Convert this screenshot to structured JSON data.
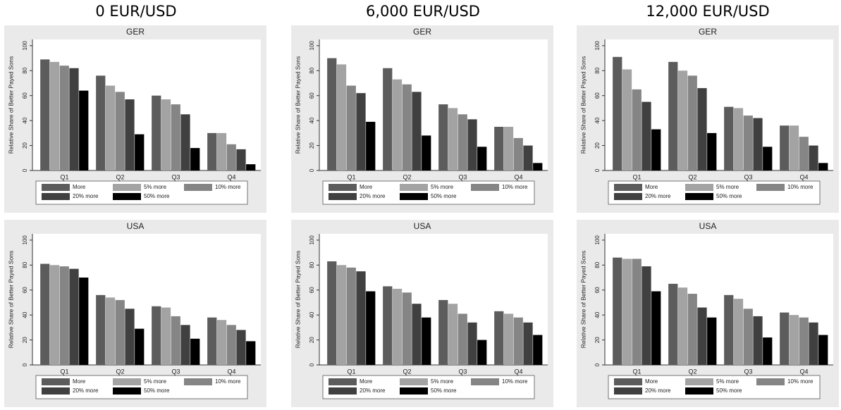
{
  "columns": [
    "0 EUR/USD",
    "6,000 EUR/USD",
    "12,000 EUR/USD"
  ],
  "chart_data": [
    {
      "type": "bar",
      "title": "GER",
      "y_label": "Relative Share of Better Payed Sons",
      "categories": [
        "Q1",
        "Q2",
        "Q3",
        "Q4"
      ],
      "ylim": [
        0,
        105
      ],
      "yticks": [
        0,
        20,
        40,
        60,
        80,
        100
      ],
      "legend": "bottom",
      "series": [
        {
          "name": "More",
          "color": "#5c5c5c",
          "values": [
            89,
            76,
            60,
            30
          ]
        },
        {
          "name": "5% more",
          "color": "#a3a3a3",
          "values": [
            87,
            68,
            57,
            30
          ]
        },
        {
          "name": "10% more",
          "color": "#858585",
          "values": [
            84,
            63,
            53,
            21
          ]
        },
        {
          "name": "20% more",
          "color": "#404040",
          "values": [
            82,
            57,
            45,
            17
          ]
        },
        {
          "name": "50% more",
          "color": "#000000",
          "values": [
            64,
            29,
            18,
            5
          ]
        }
      ]
    },
    {
      "type": "bar",
      "title": "GER",
      "y_label": "Relative Share of Better Payed Sons",
      "categories": [
        "Q1",
        "Q2",
        "Q3",
        "Q4"
      ],
      "ylim": [
        0,
        105
      ],
      "yticks": [
        0,
        20,
        40,
        60,
        80,
        100
      ],
      "legend": "bottom",
      "series": [
        {
          "name": "More",
          "color": "#5c5c5c",
          "values": [
            90,
            82,
            53,
            35
          ]
        },
        {
          "name": "5% more",
          "color": "#a3a3a3",
          "values": [
            85,
            73,
            50,
            35
          ]
        },
        {
          "name": "10% more",
          "color": "#858585",
          "values": [
            68,
            69,
            45,
            26
          ]
        },
        {
          "name": "20% more",
          "color": "#404040",
          "values": [
            62,
            63,
            41,
            20
          ]
        },
        {
          "name": "50% more",
          "color": "#000000",
          "values": [
            39,
            28,
            19,
            6
          ]
        }
      ]
    },
    {
      "type": "bar",
      "title": "GER",
      "y_label": "Relative Share of Better Payed Sons",
      "categories": [
        "Q1",
        "Q2",
        "Q3",
        "Q4"
      ],
      "ylim": [
        0,
        105
      ],
      "yticks": [
        0,
        20,
        40,
        60,
        80,
        100
      ],
      "legend": "bottom",
      "series": [
        {
          "name": "More",
          "color": "#5c5c5c",
          "values": [
            91,
            87,
            51,
            36
          ]
        },
        {
          "name": "5% more",
          "color": "#a3a3a3",
          "values": [
            81,
            80,
            50,
            36
          ]
        },
        {
          "name": "10% more",
          "color": "#858585",
          "values": [
            65,
            76,
            44,
            27
          ]
        },
        {
          "name": "20% more",
          "color": "#404040",
          "values": [
            55,
            66,
            42,
            20
          ]
        },
        {
          "name": "50% more",
          "color": "#000000",
          "values": [
            33,
            30,
            19,
            6
          ]
        }
      ]
    },
    {
      "type": "bar",
      "title": "USA",
      "y_label": "Relative Share of Better Payed Sons",
      "categories": [
        "Q1",
        "Q2",
        "Q3",
        "Q4"
      ],
      "ylim": [
        0,
        105
      ],
      "yticks": [
        0,
        20,
        40,
        60,
        80,
        100
      ],
      "legend": "bottom",
      "series": [
        {
          "name": "More",
          "color": "#5c5c5c",
          "values": [
            81,
            56,
            47,
            38
          ]
        },
        {
          "name": "5% more",
          "color": "#a3a3a3",
          "values": [
            80,
            54,
            46,
            36
          ]
        },
        {
          "name": "10% more",
          "color": "#858585",
          "values": [
            79,
            52,
            39,
            32
          ]
        },
        {
          "name": "20% more",
          "color": "#404040",
          "values": [
            77,
            45,
            32,
            28
          ]
        },
        {
          "name": "50% more",
          "color": "#000000",
          "values": [
            70,
            29,
            21,
            19
          ]
        }
      ]
    },
    {
      "type": "bar",
      "title": "USA",
      "y_label": "Relative Share of Better Payed Sons",
      "categories": [
        "Q1",
        "Q2",
        "Q3",
        "Q4"
      ],
      "ylim": [
        0,
        105
      ],
      "yticks": [
        0,
        20,
        40,
        60,
        80,
        100
      ],
      "legend": "bottom",
      "series": [
        {
          "name": "More",
          "color": "#5c5c5c",
          "values": [
            83,
            63,
            52,
            43
          ]
        },
        {
          "name": "5% more",
          "color": "#a3a3a3",
          "values": [
            80,
            61,
            49,
            41
          ]
        },
        {
          "name": "10% more",
          "color": "#858585",
          "values": [
            78,
            58,
            41,
            38
          ]
        },
        {
          "name": "20% more",
          "color": "#404040",
          "values": [
            75,
            49,
            34,
            34
          ]
        },
        {
          "name": "50% more",
          "color": "#000000",
          "values": [
            59,
            38,
            20,
            24
          ]
        }
      ]
    },
    {
      "type": "bar",
      "title": "USA",
      "y_label": "Relative Share of Better Payed Sons",
      "categories": [
        "Q1",
        "Q2",
        "Q3",
        "Q4"
      ],
      "ylim": [
        0,
        105
      ],
      "yticks": [
        0,
        20,
        40,
        60,
        80,
        100
      ],
      "legend": "bottom",
      "series": [
        {
          "name": "More",
          "color": "#5c5c5c",
          "values": [
            86,
            65,
            56,
            42
          ]
        },
        {
          "name": "5% more",
          "color": "#a3a3a3",
          "values": [
            85,
            62,
            53,
            40
          ]
        },
        {
          "name": "10% more",
          "color": "#858585",
          "values": [
            85,
            57,
            45,
            38
          ]
        },
        {
          "name": "20% more",
          "color": "#404040",
          "values": [
            79,
            46,
            39,
            34
          ]
        },
        {
          "name": "50% more",
          "color": "#000000",
          "values": [
            59,
            38,
            22,
            24
          ]
        }
      ]
    }
  ]
}
